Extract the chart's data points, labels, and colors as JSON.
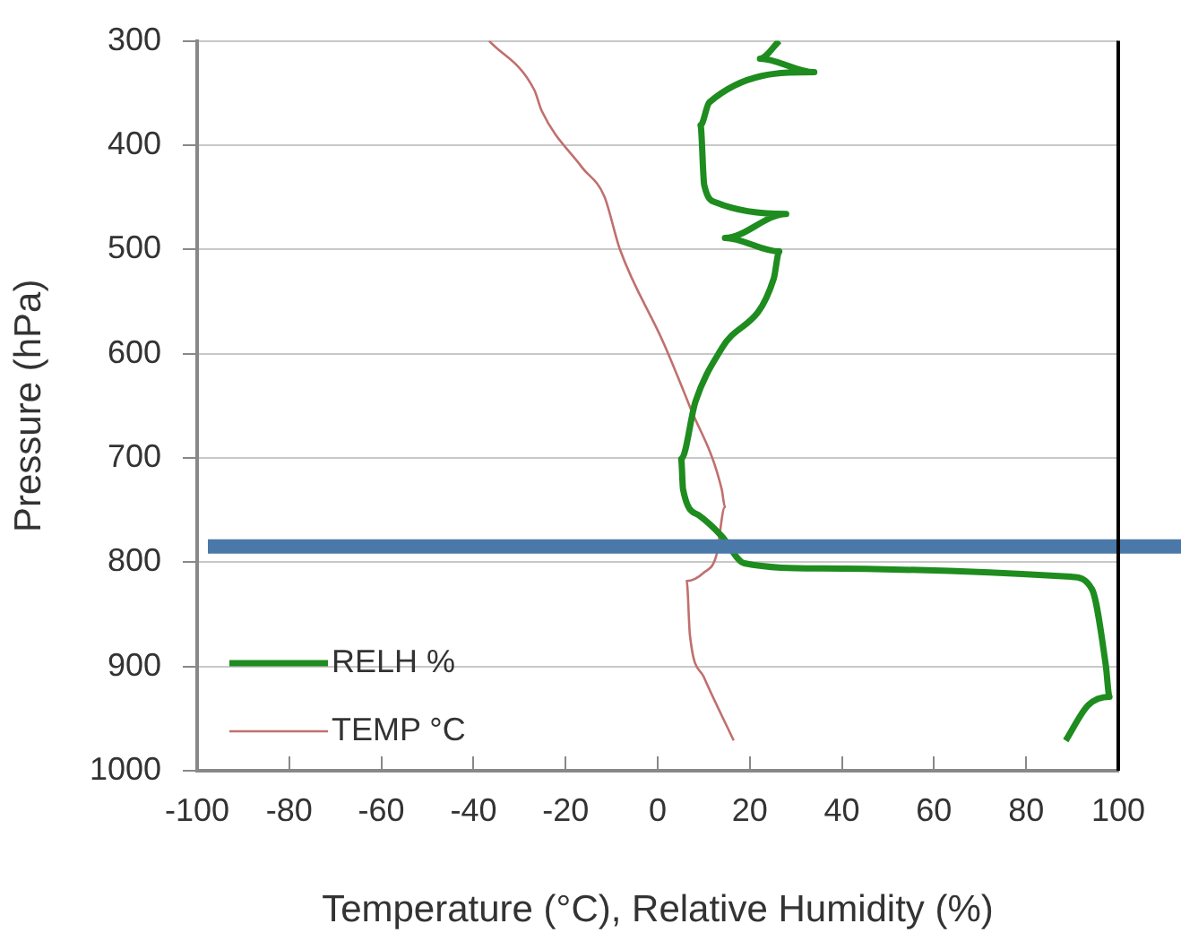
{
  "chart_data": {
    "type": "line",
    "xlabel": "Temperature (°C), Relative Humidity (%)",
    "ylabel": "Pressure (hPa)",
    "xlim": [
      -100,
      100
    ],
    "xticks": [
      -100,
      -80,
      -60,
      -40,
      -20,
      0,
      20,
      40,
      60,
      80,
      100
    ],
    "ylim": [
      1000,
      300
    ],
    "yticks": [
      300,
      400,
      500,
      600,
      700,
      800,
      900,
      1000
    ],
    "grid": "y",
    "legend": "bottom left",
    "marker": "none",
    "line_style": "solid",
    "series": [
      {
        "name": "RELH %",
        "color": "#1e8c1e",
        "x": [
          26.4,
          22.2,
          34.0,
          11.2,
          9.3,
          10.1,
          12.7,
          27.9,
          14.6,
          26.4,
          25.2,
          13.9,
          8.2,
          5.1,
          5.5,
          8.9,
          13.9,
          18.8,
          35.5,
          89.8,
          94.3,
          97.3,
          98.1,
          93.5,
          88.6
        ],
        "values": [
          300,
          317,
          330,
          359,
          381,
          438,
          455,
          466,
          489,
          502,
          528,
          595,
          646,
          701,
          730,
          755,
          775,
          801,
          806,
          814,
          826,
          899,
          929,
          937,
          971
        ]
      },
      {
        "name": "TEMP °C",
        "color": "#c0706e",
        "x": [
          -36.6,
          -26.8,
          -25.2,
          -16.5,
          -11.6,
          -8.2,
          1.3,
          7.0,
          13.9,
          14.6,
          12.7,
          10.0,
          6.3,
          7.0,
          10.0,
          16.5
        ],
        "values": [
          300,
          347,
          367,
          421,
          449,
          500,
          590,
          651,
          730,
          747,
          794,
          810,
          818,
          870,
          910,
          971
        ]
      }
    ],
    "ref_lines": [
      {
        "axis": "y",
        "value": 785,
        "color": "#4a78a8"
      }
    ]
  }
}
